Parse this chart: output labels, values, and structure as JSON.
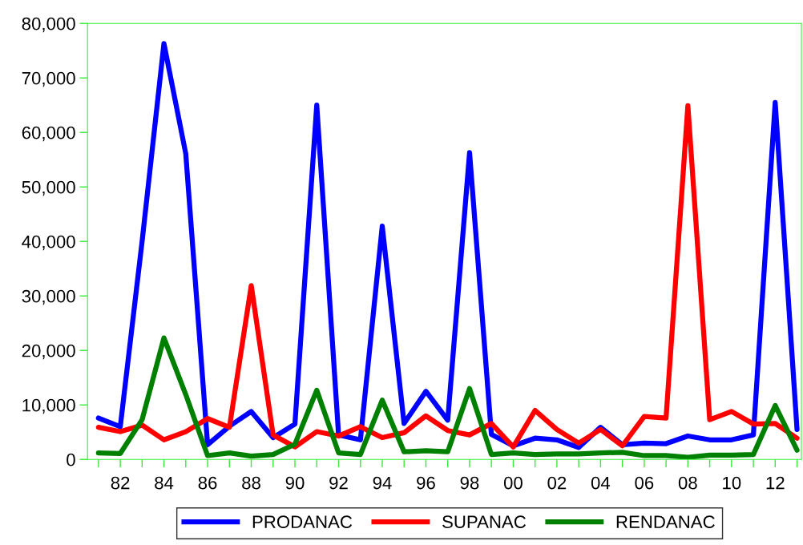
{
  "chart_data": {
    "type": "line",
    "x": [
      1981,
      1982,
      1983,
      1984,
      1985,
      1986,
      1987,
      1988,
      1989,
      1990,
      1991,
      1992,
      1993,
      1994,
      1995,
      1996,
      1997,
      1998,
      1999,
      2000,
      2001,
      2002,
      2003,
      2004,
      2005,
      2006,
      2007,
      2008,
      2009,
      2010,
      2011,
      2012,
      2013
    ],
    "series": [
      {
        "name": "PRODANAC",
        "color": "#0000ff",
        "values": [
          7600,
          6000,
          40000,
          76300,
          56100,
          2700,
          6100,
          8800,
          4000,
          6500,
          65000,
          4500,
          3600,
          42800,
          6600,
          12500,
          7200,
          56300,
          4600,
          2500,
          3900,
          3600,
          2200,
          5900,
          2700,
          3000,
          2900,
          4300,
          3600,
          3600,
          4500,
          65500,
          5500
        ]
      },
      {
        "name": "SUPANAC",
        "color": "#ff0000",
        "values": [
          5900,
          5100,
          6300,
          3600,
          5100,
          7500,
          5900,
          31900,
          4500,
          2300,
          5100,
          4300,
          6000,
          4000,
          4900,
          8000,
          5300,
          4500,
          6600,
          2300,
          9000,
          5500,
          3000,
          5500,
          2500,
          7900,
          7600,
          64900,
          7300,
          8800,
          6500,
          6600,
          3900
        ]
      },
      {
        "name": "RENDANAC",
        "color": "#008000",
        "values": [
          1200,
          1100,
          7300,
          22300,
          11900,
          700,
          1200,
          600,
          900,
          2800,
          12700,
          1200,
          900,
          10900,
          1400,
          1600,
          1400,
          13000,
          900,
          1200,
          900,
          1000,
          1000,
          1200,
          1300,
          700,
          700,
          400,
          800,
          800,
          900,
          9900,
          1700
        ]
      }
    ],
    "xlim": [
      1980.5,
      2013.2
    ],
    "xticks": [
      {
        "value": 1981,
        "label": null
      },
      {
        "value": 1982,
        "label": "82"
      },
      {
        "value": 1983,
        "label": null
      },
      {
        "value": 1984,
        "label": "84"
      },
      {
        "value": 1985,
        "label": null
      },
      {
        "value": 1986,
        "label": "86"
      },
      {
        "value": 1987,
        "label": null
      },
      {
        "value": 1988,
        "label": "88"
      },
      {
        "value": 1989,
        "label": null
      },
      {
        "value": 1990,
        "label": "90"
      },
      {
        "value": 1991,
        "label": null
      },
      {
        "value": 1992,
        "label": "92"
      },
      {
        "value": 1993,
        "label": null
      },
      {
        "value": 1994,
        "label": "94"
      },
      {
        "value": 1995,
        "label": null
      },
      {
        "value": 1996,
        "label": "96"
      },
      {
        "value": 1997,
        "label": null
      },
      {
        "value": 1998,
        "label": "98"
      },
      {
        "value": 1999,
        "label": null
      },
      {
        "value": 2000,
        "label": "00"
      },
      {
        "value": 2001,
        "label": null
      },
      {
        "value": 2002,
        "label": "02"
      },
      {
        "value": 2003,
        "label": null
      },
      {
        "value": 2004,
        "label": "04"
      },
      {
        "value": 2005,
        "label": null
      },
      {
        "value": 2006,
        "label": "06"
      },
      {
        "value": 2007,
        "label": null
      },
      {
        "value": 2008,
        "label": "08"
      },
      {
        "value": 2009,
        "label": null
      },
      {
        "value": 2010,
        "label": "10"
      },
      {
        "value": 2011,
        "label": null
      },
      {
        "value": 2012,
        "label": "12"
      },
      {
        "value": 2013,
        "label": null
      }
    ],
    "ylim": [
      0,
      80000
    ],
    "yticks": [
      {
        "value": 0,
        "label": "0"
      },
      {
        "value": 10000,
        "label": "10,000"
      },
      {
        "value": 20000,
        "label": "20,000"
      },
      {
        "value": 30000,
        "label": "30,000"
      },
      {
        "value": 40000,
        "label": "40,000"
      },
      {
        "value": 50000,
        "label": "50,000"
      },
      {
        "value": 60000,
        "label": "60,000"
      },
      {
        "value": 70000,
        "label": "70,000"
      },
      {
        "value": 80000,
        "label": "80,000"
      }
    ],
    "grid": false,
    "legend": "bottom",
    "marker": "none",
    "line_style": "solid"
  }
}
